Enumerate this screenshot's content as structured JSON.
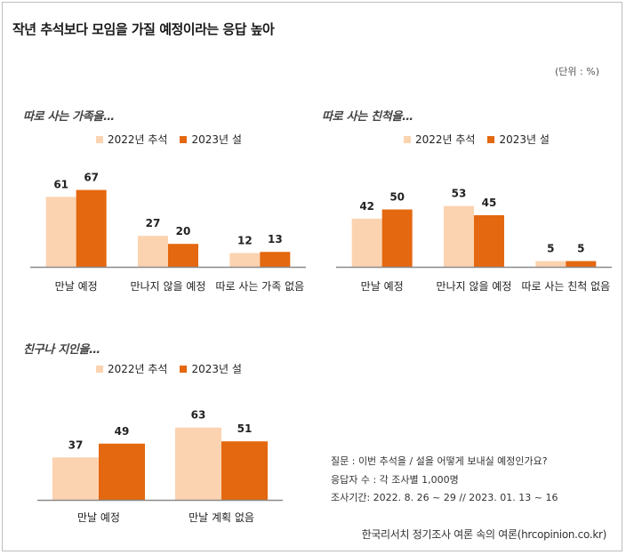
{
  "title": "작년 추석보다 모임을 가질 예정이라는 응답 높아",
  "unit": "(단위 : %)",
  "legend": {
    "s1": "2022년 추석",
    "s2": "2023년 설"
  },
  "colors": {
    "s1": "#fcd3b0",
    "s2": "#e4680f",
    "axis": "#8a8a8a"
  },
  "chart_data": [
    {
      "type": "bar",
      "title": "따로 사는 가족을…",
      "categories": [
        "만날 예정",
        "만나지 않을 예정",
        "따로 사는 가족 없음"
      ],
      "series": [
        {
          "name": "2022년 추석",
          "values": [
            61,
            27,
            12
          ]
        },
        {
          "name": "2023년 설",
          "values": [
            67,
            20,
            13
          ]
        }
      ],
      "ylim": [
        0,
        70
      ]
    },
    {
      "type": "bar",
      "title": "따로 사는 친척을…",
      "categories": [
        "만날 예정",
        "만나지 않을 예정",
        "따로 사는 친척 없음"
      ],
      "series": [
        {
          "name": "2022년 추석",
          "values": [
            42,
            53,
            5
          ]
        },
        {
          "name": "2023년 설",
          "values": [
            50,
            45,
            5
          ]
        }
      ],
      "ylim": [
        0,
        70
      ]
    },
    {
      "type": "bar",
      "title": "친구나 지인을…",
      "categories": [
        "만날 예정",
        "만날 계획 없음"
      ],
      "series": [
        {
          "name": "2022년 추석",
          "values": [
            37,
            63
          ]
        },
        {
          "name": "2023년 설",
          "values": [
            49,
            51
          ]
        }
      ],
      "ylim": [
        0,
        70
      ]
    }
  ],
  "notes": {
    "question": "질문 :  이번 추석을 / 설을 어떻게 보내실 예정인가요?",
    "respondents": "응답자 수 : 각 조사별 1,000명",
    "period": "조사기간: 2022. 8. 26 ~ 29 // 2023. 01. 13 ~ 16"
  },
  "source": "한국리서치 정기조사 여론 속의 여론(hrcopinion.co.kr)"
}
